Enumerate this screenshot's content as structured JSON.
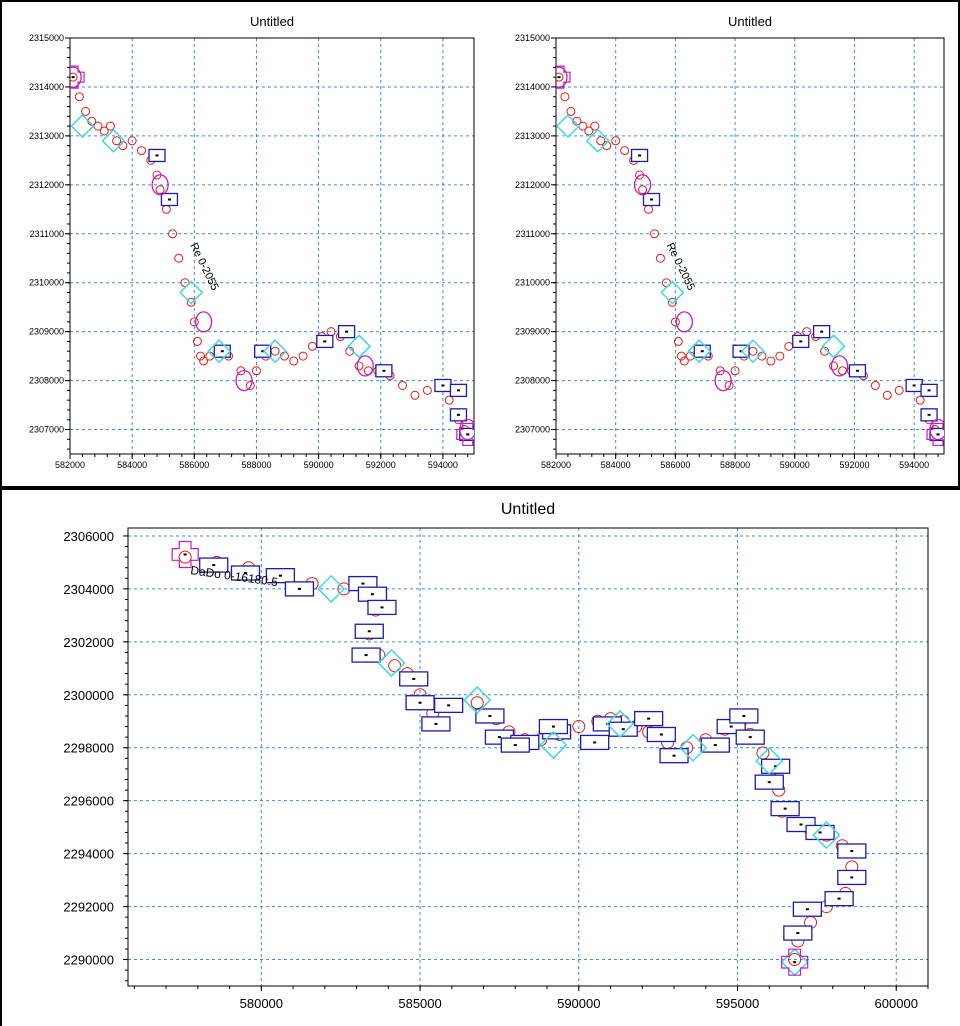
{
  "colors": {
    "grid": "#3a8fd8",
    "circle_marker": "#e0201a",
    "rectangle_marker": "#1c1ca8",
    "diamond_marker": "#3fd6e0",
    "ellipse_marker": "#c020c0",
    "cross_marker": "#c020c0"
  },
  "chart_data": [
    {
      "type": "scatter",
      "title": "Untitled",
      "xlabel": "",
      "ylabel": "",
      "xlim": [
        582000,
        595000
      ],
      "ylim": [
        2306500,
        2315000
      ],
      "grid": true,
      "x_ticks": [
        582000,
        584000,
        586000,
        588000,
        590000,
        592000,
        594000
      ],
      "y_ticks": [
        2307000,
        2308000,
        2309000,
        2310000,
        2311000,
        2312000,
        2313000,
        2314000,
        2315000
      ],
      "x_tick_labels": [
        "582000",
        "584000",
        "586000",
        "588000",
        "590000",
        "592000",
        "594000"
      ],
      "y_tick_labels": [
        "2307000",
        "2308000",
        "2309000",
        "2310000",
        "2311000",
        "2312000",
        "2313000",
        "2314000",
        "2315000"
      ],
      "annotation": "Re  0-2055",
      "series": [
        {
          "marker": "circle",
          "x": [
            582100,
            582300,
            582500,
            582700,
            582900,
            583100,
            583300,
            583500,
            583700,
            584000,
            584300,
            584600,
            584800,
            584900,
            585100,
            585300,
            585500,
            585700,
            585900,
            586000,
            586100,
            586200,
            586300,
            586500,
            586800,
            587100,
            587500,
            587800,
            588000,
            588300,
            588600,
            588900,
            589200,
            589500,
            589800,
            590100,
            590400,
            590700,
            591000,
            591300,
            591600,
            591900,
            592300,
            592700,
            593100,
            593500,
            593900,
            594200,
            594500,
            594700
          ],
          "y": [
            2314200,
            2313800,
            2313500,
            2313300,
            2313200,
            2313100,
            2313200,
            2312900,
            2312800,
            2312900,
            2312700,
            2312500,
            2312200,
            2311900,
            2311500,
            2311000,
            2310500,
            2310000,
            2309600,
            2309200,
            2308800,
            2308500,
            2308400,
            2308500,
            2308600,
            2308500,
            2308200,
            2307900,
            2308200,
            2308500,
            2308600,
            2308500,
            2308400,
            2308500,
            2308700,
            2308900,
            2309000,
            2308900,
            2308600,
            2308300,
            2308200,
            2308200,
            2308100,
            2307900,
            2307700,
            2307800,
            2307900,
            2307600,
            2307200,
            2307000
          ]
        },
        {
          "marker": "rectangle",
          "x": [
            584800,
            585200,
            586900,
            588200,
            590200,
            590900,
            592100,
            594000,
            594500,
            594500,
            594800
          ],
          "y": [
            2312600,
            2311700,
            2308600,
            2308600,
            2308800,
            2309000,
            2308200,
            2307900,
            2307800,
            2307300,
            2306900
          ]
        },
        {
          "marker": "diamond",
          "x": [
            582400,
            583400,
            585900,
            586800,
            588600,
            591300
          ],
          "y": [
            2313200,
            2312900,
            2309800,
            2308600,
            2308600,
            2308700
          ]
        },
        {
          "marker": "ellipse",
          "x": [
            582100,
            584900,
            586300,
            587600,
            591500,
            594800
          ],
          "y": [
            2314200,
            2312000,
            2309200,
            2308000,
            2308300,
            2307000
          ]
        },
        {
          "marker": "cross",
          "x": [
            582100,
            594800
          ],
          "y": [
            2314200,
            2306900
          ]
        }
      ]
    },
    {
      "type": "scatter",
      "title": "Untitled",
      "xlabel": "",
      "ylabel": "",
      "xlim": [
        582000,
        595000
      ],
      "ylim": [
        2306500,
        2315000
      ],
      "grid": true,
      "x_ticks": [
        582000,
        584000,
        586000,
        588000,
        590000,
        592000,
        594000
      ],
      "y_ticks": [
        2307000,
        2308000,
        2309000,
        2310000,
        2311000,
        2312000,
        2313000,
        2314000,
        2315000
      ],
      "x_tick_labels": [
        "582000",
        "584000",
        "586000",
        "588000",
        "590000",
        "592000",
        "594000"
      ],
      "y_tick_labels": [
        "2307000",
        "2308000",
        "2309000",
        "2310000",
        "2311000",
        "2312000",
        "2313000",
        "2314000",
        "2315000"
      ],
      "annotation": "Re  0-2055",
      "series": [
        {
          "marker": "circle",
          "x": [
            582100,
            582300,
            582500,
            582700,
            582900,
            583100,
            583300,
            583500,
            583700,
            584000,
            584300,
            584600,
            584800,
            584900,
            585100,
            585300,
            585500,
            585700,
            585900,
            586000,
            586100,
            586200,
            586300,
            586500,
            586800,
            587100,
            587500,
            587800,
            588000,
            588300,
            588600,
            588900,
            589200,
            589500,
            589800,
            590100,
            590400,
            590700,
            591000,
            591300,
            591600,
            591900,
            592300,
            592700,
            593100,
            593500,
            593900,
            594200,
            594500,
            594700
          ],
          "y": [
            2314200,
            2313800,
            2313500,
            2313300,
            2313200,
            2313100,
            2313200,
            2312900,
            2312800,
            2312900,
            2312700,
            2312500,
            2312200,
            2311900,
            2311500,
            2311000,
            2310500,
            2310000,
            2309600,
            2309200,
            2308800,
            2308500,
            2308400,
            2308500,
            2308600,
            2308500,
            2308200,
            2307900,
            2308200,
            2308500,
            2308600,
            2308500,
            2308400,
            2308500,
            2308700,
            2308900,
            2309000,
            2308900,
            2308600,
            2308300,
            2308200,
            2308200,
            2308100,
            2307900,
            2307700,
            2307800,
            2307900,
            2307600,
            2307200,
            2307000
          ]
        },
        {
          "marker": "rectangle",
          "x": [
            584800,
            585200,
            586900,
            588200,
            590200,
            590900,
            592100,
            594000,
            594500,
            594500,
            594800
          ],
          "y": [
            2312600,
            2311700,
            2308600,
            2308600,
            2308800,
            2309000,
            2308200,
            2307900,
            2307800,
            2307300,
            2306900
          ]
        },
        {
          "marker": "diamond",
          "x": [
            582400,
            583400,
            585900,
            586800,
            588600,
            591300
          ],
          "y": [
            2313200,
            2312900,
            2309800,
            2308600,
            2308600,
            2308700
          ]
        },
        {
          "marker": "ellipse",
          "x": [
            582100,
            584900,
            586300,
            587600,
            591500,
            594800
          ],
          "y": [
            2314200,
            2312000,
            2309200,
            2308000,
            2308300,
            2307000
          ]
        },
        {
          "marker": "cross",
          "x": [
            582100,
            594800
          ],
          "y": [
            2314200,
            2306900
          ]
        }
      ]
    },
    {
      "type": "scatter",
      "title": "Untitled",
      "xlabel": "",
      "ylabel": "",
      "xlim": [
        575800,
        601000
      ],
      "ylim": [
        2289000,
        2306300
      ],
      "grid": true,
      "x_ticks": [
        580000,
        585000,
        590000,
        595000,
        600000
      ],
      "y_ticks": [
        2290000,
        2292000,
        2294000,
        2296000,
        2298000,
        2300000,
        2302000,
        2304000,
        2306000
      ],
      "x_tick_labels": [
        "580000",
        "585000",
        "590000",
        "595000",
        "600000"
      ],
      "y_tick_labels": [
        "2290000",
        "2292000",
        "2294000",
        "2296000",
        "2298000",
        "2300000",
        "2302000",
        "2304000",
        "2306000"
      ],
      "annotation": "DaDo  0-16180.5",
      "series": [
        {
          "marker": "circle",
          "x": [
            577600,
            578600,
            579600,
            580600,
            581600,
            582600,
            583300,
            583600,
            583400,
            583700,
            584200,
            584600,
            585000,
            585400,
            586000,
            586800,
            587400,
            587800,
            588300,
            588800,
            589400,
            590000,
            590600,
            591000,
            591400,
            591800,
            592200,
            592800,
            593400,
            594000,
            594600,
            595100,
            595400,
            595800,
            596100,
            596300,
            596400,
            596800,
            597300,
            597800,
            598300,
            598600,
            598400,
            597800,
            597300,
            596900,
            596800
          ],
          "y": [
            2305200,
            2305000,
            2304800,
            2304500,
            2304200,
            2304000,
            2303900,
            2303200,
            2302300,
            2301500,
            2301100,
            2300800,
            2300000,
            2299300,
            2299600,
            2299700,
            2299100,
            2298600,
            2298300,
            2298300,
            2298500,
            2298800,
            2299000,
            2299100,
            2299000,
            2298800,
            2298600,
            2298200,
            2298000,
            2298300,
            2298700,
            2299000,
            2298500,
            2297800,
            2297200,
            2296400,
            2295600,
            2295100,
            2294900,
            2294700,
            2294300,
            2293500,
            2292500,
            2292000,
            2291400,
            2290700,
            2290000
          ]
        },
        {
          "marker": "rectangle",
          "x": [
            578500,
            579500,
            580600,
            581200,
            583200,
            583500,
            583800,
            583400,
            583300,
            584800,
            585000,
            585500,
            585900,
            587200,
            587500,
            588300,
            588000,
            589300,
            589200,
            590500,
            590900,
            591400,
            592200,
            592600,
            593000,
            594300,
            594800,
            595200,
            595400,
            596200,
            596000,
            596500,
            597000,
            597600,
            598600,
            598600,
            598200,
            597200,
            596900
          ],
          "y": [
            2304900,
            2304600,
            2304500,
            2304000,
            2304200,
            2303800,
            2303300,
            2302400,
            2301500,
            2300600,
            2299700,
            2298900,
            2299600,
            2299200,
            2298400,
            2298200,
            2298100,
            2298600,
            2298800,
            2298200,
            2298900,
            2298700,
            2299100,
            2298500,
            2297700,
            2298100,
            2298800,
            2299200,
            2298400,
            2297300,
            2296700,
            2295700,
            2295100,
            2294800,
            2294100,
            2293100,
            2292300,
            2291900,
            2291000
          ]
        },
        {
          "marker": "diamond",
          "x": [
            582200,
            584100,
            586800,
            589200,
            591300,
            593600,
            596000,
            597800,
            596800
          ],
          "y": [
            2304000,
            2301200,
            2299800,
            2298100,
            2298900,
            2298000,
            2297500,
            2294700,
            2289900
          ]
        },
        {
          "marker": "cross",
          "x": [
            577600,
            596800
          ],
          "y": [
            2305300,
            2289900
          ]
        }
      ]
    }
  ]
}
